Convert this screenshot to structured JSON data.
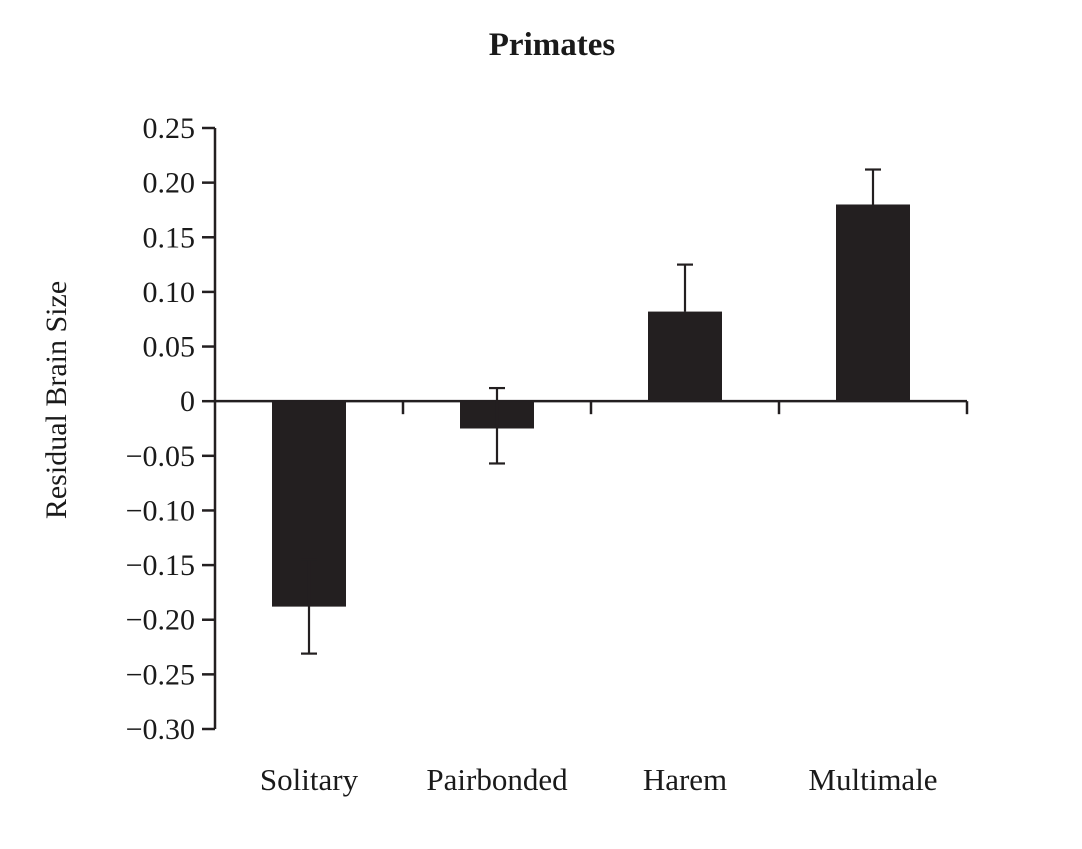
{
  "chart_data": {
    "type": "bar",
    "title": "Primates",
    "xlabel": "",
    "ylabel": "Residual Brain Size",
    "categories": [
      "Solitary",
      "Pairbonded",
      "Harem",
      "Multimale"
    ],
    "values": [
      -0.188,
      -0.025,
      0.082,
      0.18
    ],
    "error_upper": [
      0.043,
      0.037,
      0.043,
      0.032
    ],
    "error_lower": [
      0.043,
      0.032,
      0.0,
      0.0
    ],
    "ylim": [
      -0.3,
      0.25
    ],
    "yticks": [
      0.25,
      0.2,
      0.15,
      0.1,
      0.05,
      0,
      -0.05,
      -0.1,
      -0.15,
      -0.2,
      -0.25,
      -0.3
    ],
    "ytick_labels": [
      "0.25",
      "0.20",
      "0.15",
      "0.10",
      "0.05",
      "0",
      "−0.05",
      "−0.10",
      "−0.15",
      "−0.20",
      "−0.25",
      "−0.30"
    ],
    "bar_color": "#231f20",
    "grid": false,
    "legend": "none"
  }
}
